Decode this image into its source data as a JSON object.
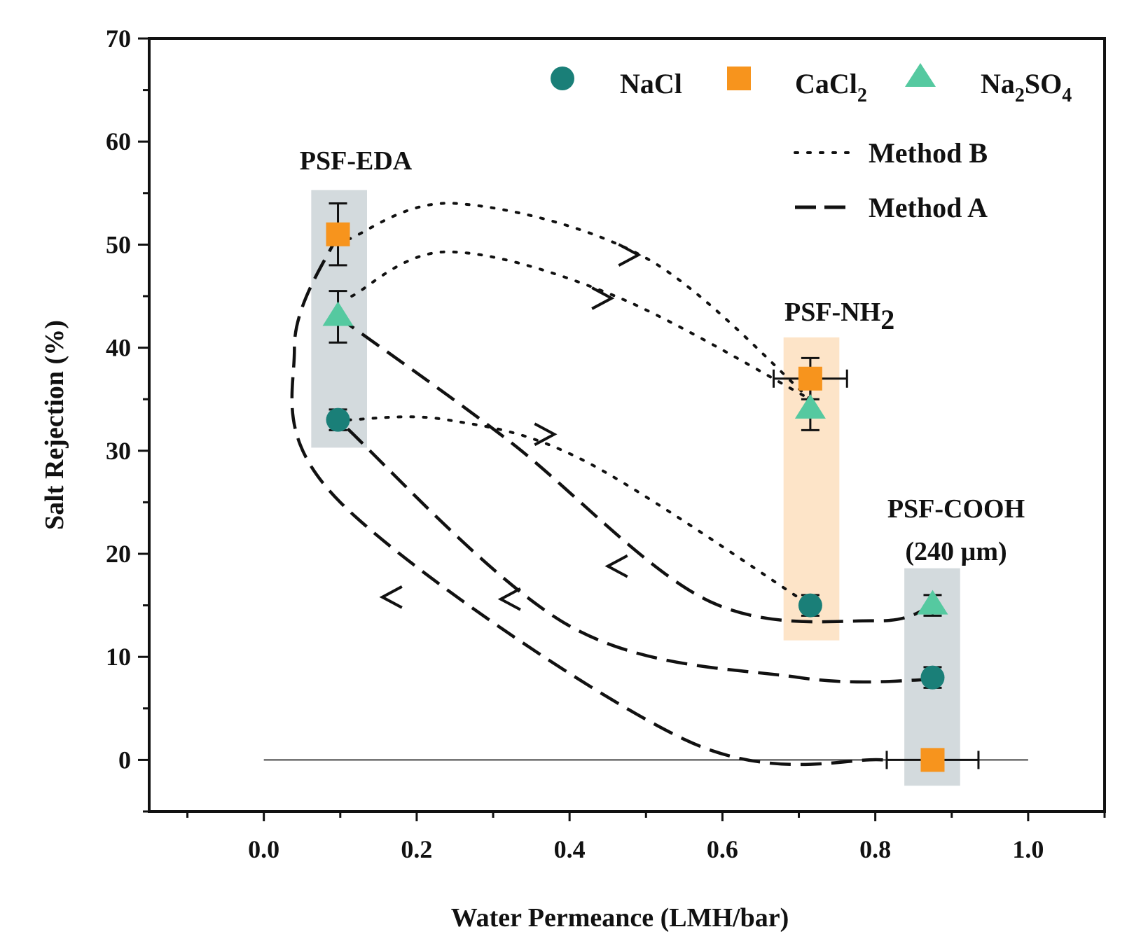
{
  "chart_data": {
    "type": "scatter",
    "xlabel": "Water Permeance (LMH/bar)",
    "ylabel": "Salt Rejection (%)",
    "xlim": [
      -0.15,
      1.1
    ],
    "ylim": [
      -5,
      70
    ],
    "x_ticks": [
      "0.0",
      "0.2",
      "0.4",
      "0.6",
      "0.8",
      "1.0"
    ],
    "x_tick_values": [
      0.0,
      0.2,
      0.4,
      0.6,
      0.8,
      1.0
    ],
    "y_ticks": [
      "0",
      "10",
      "20",
      "30",
      "40",
      "50",
      "60",
      "70"
    ],
    "y_tick_values": [
      0,
      10,
      20,
      30,
      40,
      50,
      60,
      70
    ],
    "colors": {
      "NaCl": "#1a7f78",
      "CaCl2": "#f7941d",
      "Na2SO4": "#55c9a0",
      "grey_band": "#d3dadd",
      "orange_band": "#fde4c8"
    },
    "series": [
      {
        "name": "NaCl",
        "marker": "circle",
        "points": [
          {
            "x": 0.097,
            "y": 33,
            "yerr": 1.0,
            "xerr": 0
          },
          {
            "x": 0.715,
            "y": 15,
            "yerr": 1.0,
            "xerr": 0
          },
          {
            "x": 0.875,
            "y": 8,
            "yerr": 1.0,
            "xerr": 0
          }
        ]
      },
      {
        "name": "CaCl2",
        "marker": "square",
        "points": [
          {
            "x": 0.097,
            "y": 51,
            "yerr": 3.0,
            "xerr": 0
          },
          {
            "x": 0.715,
            "y": 37,
            "yerr": 2.0,
            "xerr": 0.048
          },
          {
            "x": 0.875,
            "y": 0,
            "yerr": 0,
            "xerr": 0.06
          }
        ]
      },
      {
        "name": "Na2SO4",
        "marker": "triangle",
        "points": [
          {
            "x": 0.097,
            "y": 43,
            "yerr": 2.5,
            "xerr": 0
          },
          {
            "x": 0.715,
            "y": 34,
            "yerr": 2.0,
            "xerr": 0
          },
          {
            "x": 0.875,
            "y": 15,
            "yerr": 1.0,
            "xerr": 0
          }
        ]
      }
    ],
    "groups": [
      {
        "label": "PSF-EDA",
        "x_range": [
          0.062,
          0.135
        ],
        "y_range": [
          30.3,
          55.3
        ],
        "band": "grey"
      },
      {
        "label_main": "PSF-NH",
        "label_sub": "2",
        "x_range": [
          0.68,
          0.753
        ],
        "y_range": [
          11.6,
          41
        ],
        "band": "orange"
      },
      {
        "label_line1": "PSF-COOH",
        "label_line2": "(240 µm)",
        "x_range": [
          0.838,
          0.911
        ],
        "y_range": [
          -2.5,
          18.6
        ],
        "band": "grey"
      }
    ],
    "legend": {
      "placement": "top-right",
      "entries": [
        {
          "series": "NaCl",
          "label": "NaCl"
        },
        {
          "series": "CaCl2",
          "label_main": "CaCl",
          "label_sub": "2"
        },
        {
          "series": "Na2SO4",
          "label_a": "Na",
          "sub_a": "2",
          "label_b": "SO",
          "sub_b": "4"
        }
      ],
      "line_entries": [
        {
          "style": "dotted",
          "label": "Method B"
        },
        {
          "style": "dashed",
          "label": "Method A"
        }
      ]
    },
    "method_b_curves": [
      [
        [
          0.11,
          50.5
        ],
        [
          0.25,
          54
        ],
        [
          0.5,
          48.7
        ],
        [
          0.715,
          35
        ]
      ],
      [
        [
          0.115,
          45
        ],
        [
          0.24,
          49.3
        ],
        [
          0.46,
          45
        ],
        [
          0.715,
          35
        ]
      ],
      [
        [
          0.11,
          33
        ],
        [
          0.24,
          33
        ],
        [
          0.42,
          29
        ],
        [
          0.715,
          15
        ]
      ]
    ],
    "method_a_curves": [
      [
        [
          0.875,
          15
        ],
        [
          0.8,
          13.5
        ],
        [
          0.58,
          15.5
        ],
        [
          0.32,
          31
        ],
        [
          0.097,
          43
        ]
      ],
      [
        [
          0.875,
          7.8
        ],
        [
          0.7,
          8
        ],
        [
          0.4,
          13
        ],
        [
          0.097,
          33
        ]
      ],
      [
        [
          0.81,
          0
        ],
        [
          0.55,
          2
        ],
        [
          0.1,
          25
        ],
        [
          0.04,
          40
        ],
        [
          0.097,
          51
        ]
      ]
    ],
    "arrows_b": [
      [
        0.49,
        49
      ],
      [
        0.455,
        44.8
      ],
      [
        0.38,
        31.6
      ]
    ],
    "arrows_a": [
      [
        0.45,
        18.8
      ],
      [
        0.31,
        15.6
      ],
      [
        0.155,
        15.8
      ]
    ],
    "baseline_y": 0
  }
}
